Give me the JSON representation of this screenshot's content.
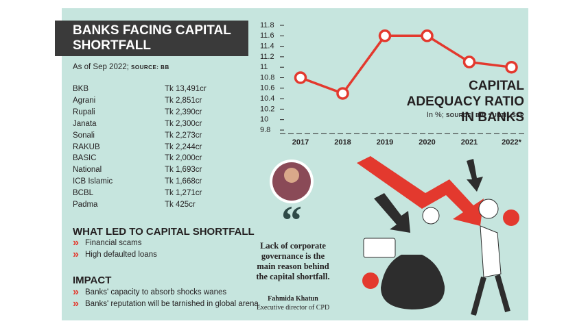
{
  "header": {
    "title": "BANKS FACING CAPITAL SHORTFALL",
    "subtitle": "As of Sep 2022;",
    "source": "SOURCE: BB"
  },
  "table": {
    "rows": [
      [
        "BKB",
        "Tk 13,491cr"
      ],
      [
        "Agrani",
        "Tk 2,851cr"
      ],
      [
        "Rupali",
        "Tk 2,390cr"
      ],
      [
        "Janata",
        "Tk 2,300cr"
      ],
      [
        "Sonali",
        "Tk 2,273cr"
      ],
      [
        "RAKUB",
        "Tk 2,244cr"
      ],
      [
        "BASIC",
        "Tk 2,000cr"
      ],
      [
        "National",
        "Tk 1,693cr"
      ],
      [
        "ICB Islamic",
        "Tk 1,668cr"
      ],
      [
        "BCBL",
        "Tk 1,271cr"
      ],
      [
        "Padma",
        "Tk 425cr"
      ]
    ]
  },
  "causes": {
    "title": "WHAT LED TO CAPITAL SHORTFALL",
    "items": [
      "Financial scams",
      "High defaulted loans"
    ]
  },
  "impact": {
    "title": "IMPACT",
    "items": [
      "Banks' capacity to absorb shocks wanes",
      "Banks' reputation will be tarnished in global arena"
    ]
  },
  "quote": {
    "text": "Lack of corporate governance is the main reason behind the capital shortfall.",
    "name": "Fahmida Khatun",
    "role": "Executive director of CPD"
  },
  "chart_data": {
    "type": "line",
    "title": "CAPITAL ADEQUACY RATIO IN BANKS",
    "subtitle": "In %;",
    "source": "SOURCE: BB; * UNTIL SEP",
    "categories": [
      "2017",
      "2018",
      "2019",
      "2020",
      "2021",
      "2022*"
    ],
    "values": [
      10.8,
      10.5,
      11.6,
      11.6,
      11.1,
      11.0
    ],
    "color": "#e3392e",
    "ylim": [
      9.8,
      11.8
    ],
    "yticks": [
      9.8,
      10,
      10.2,
      10.4,
      10.6,
      10.8,
      11,
      11.2,
      11.4,
      11.6,
      11.8
    ]
  }
}
